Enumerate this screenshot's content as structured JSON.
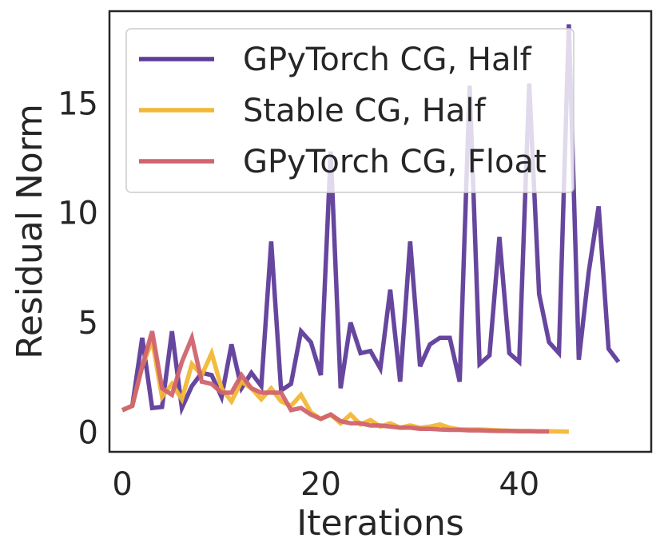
{
  "chart_data": {
    "type": "line",
    "title": "",
    "xlabel": "Iterations",
    "ylabel": "Residual Norm",
    "xlim": [
      -1.3,
      53.3
    ],
    "ylim": [
      -0.9,
      19.2
    ],
    "xticks": [
      0,
      20,
      40
    ],
    "yticks": [
      0,
      5,
      10,
      15
    ],
    "grid": false,
    "legend_position": "top-left",
    "series": [
      {
        "name": "GPyTorch CG, Half",
        "color": "#5e3c99",
        "x": [
          0,
          1,
          2,
          3,
          4,
          5,
          6,
          7,
          8,
          9,
          10,
          11,
          12,
          13,
          14,
          15,
          16,
          17,
          18,
          19,
          20,
          21,
          22,
          23,
          24,
          25,
          26,
          27,
          28,
          29,
          30,
          31,
          32,
          33,
          34,
          35,
          36,
          37,
          38,
          39,
          40,
          41,
          42,
          43,
          44,
          45,
          46,
          47,
          48,
          49,
          50
        ],
        "y": [
          1.0,
          1.2,
          4.3,
          1.1,
          1.15,
          4.6,
          1.1,
          2.1,
          2.7,
          2.6,
          1.6,
          4.0,
          2.0,
          2.7,
          2.1,
          8.7,
          1.9,
          2.2,
          4.6,
          4.1,
          2.6,
          12.8,
          2.0,
          5.0,
          3.6,
          3.7,
          2.9,
          6.5,
          2.3,
          8.7,
          3.0,
          4.0,
          4.3,
          4.3,
          2.3,
          15.8,
          3.1,
          3.5,
          8.9,
          3.6,
          3.2,
          15.9,
          6.3,
          4.1,
          3.6,
          18.6,
          3.3,
          7.3,
          10.3,
          3.8,
          3.2
        ]
      },
      {
        "name": "Stable CG, Half",
        "color": "#f2b735",
        "x": [
          0,
          1,
          2,
          3,
          4,
          5,
          6,
          7,
          8,
          9,
          10,
          11,
          12,
          13,
          14,
          15,
          16,
          17,
          18,
          19,
          20,
          21,
          22,
          23,
          24,
          25,
          26,
          27,
          28,
          29,
          30,
          31,
          32,
          33,
          34,
          35,
          36,
          37,
          38,
          39,
          40,
          41,
          42,
          43,
          44,
          45
        ],
        "y": [
          1.0,
          1.2,
          3.0,
          4.2,
          1.6,
          2.2,
          1.5,
          3.1,
          2.6,
          3.6,
          2.0,
          1.4,
          2.3,
          2.0,
          1.5,
          2.0,
          1.4,
          1.2,
          1.7,
          0.9,
          0.6,
          0.8,
          0.4,
          0.8,
          0.35,
          0.55,
          0.25,
          0.4,
          0.2,
          0.3,
          0.2,
          0.25,
          0.35,
          0.2,
          0.12,
          0.12,
          0.12,
          0.1,
          0.08,
          0.06,
          0.05,
          0.05,
          0.04,
          0.04,
          0.03,
          0.02
        ]
      },
      {
        "name": "GPyTorch CG, Float",
        "color": "#d0646f",
        "x": [
          0,
          1,
          2,
          3,
          4,
          5,
          6,
          7,
          8,
          9,
          10,
          11,
          12,
          13,
          14,
          15,
          16,
          17,
          18,
          19,
          20,
          21,
          22,
          23,
          24,
          25,
          26,
          27,
          28,
          29,
          30,
          31,
          32,
          33,
          34,
          35,
          36,
          37,
          38,
          39,
          40,
          41,
          42,
          43
        ],
        "y": [
          1.0,
          1.2,
          3.0,
          4.6,
          2.0,
          1.7,
          3.2,
          4.3,
          2.3,
          2.2,
          1.8,
          1.8,
          2.6,
          2.0,
          1.8,
          1.8,
          1.8,
          1.0,
          1.1,
          0.8,
          0.6,
          0.8,
          0.5,
          0.4,
          0.4,
          0.3,
          0.3,
          0.25,
          0.2,
          0.2,
          0.15,
          0.15,
          0.12,
          0.1,
          0.1,
          0.08,
          0.08,
          0.06,
          0.05,
          0.05,
          0.04,
          0.04,
          0.03,
          0.03
        ]
      }
    ]
  }
}
